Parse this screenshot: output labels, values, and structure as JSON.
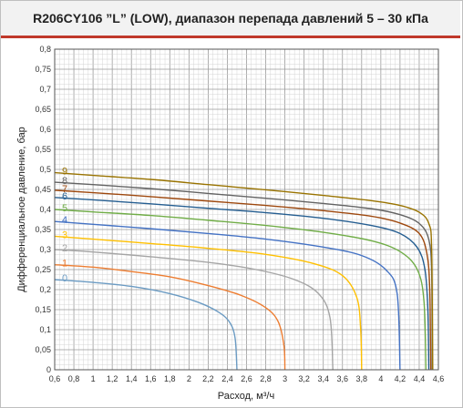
{
  "chart_data": {
    "type": "line",
    "title": "R206CY106 ”L” (LOW), диапазон перепада давлений 5 – 30 кПа",
    "xlabel": "Расход, м³/ч",
    "ylabel": "Дифференциальное давление, бар",
    "xlim": [
      0.6,
      4.6
    ],
    "ylim": [
      0,
      0.8
    ],
    "x_ticks": [
      "0,6",
      "0,8",
      "1",
      "1,2",
      "1,4",
      "1,6",
      "1,8",
      "2",
      "2,2",
      "2,4",
      "2,6",
      "2,8",
      "3",
      "3,2",
      "3,4",
      "3,6",
      "3,8",
      "4",
      "4,2",
      "4,4",
      "4,6"
    ],
    "y_ticks": [
      "0",
      "0,05",
      "0,1",
      "0,15",
      "0,2",
      "0,25",
      "0,3",
      "0,35",
      "0,4",
      "0,45",
      "0,5",
      "0,55",
      "0,6",
      "0,65",
      "0,7",
      "0,75",
      "0,8"
    ],
    "grid": true,
    "series": [
      {
        "name": "0",
        "color": "#6b9bc3",
        "points": [
          [
            0.6,
            0.225
          ],
          [
            1.0,
            0.218
          ],
          [
            1.4,
            0.208
          ],
          [
            1.8,
            0.19
          ],
          [
            2.1,
            0.168
          ],
          [
            2.3,
            0.145
          ],
          [
            2.42,
            0.12
          ],
          [
            2.48,
            0.08
          ],
          [
            2.5,
            0.0
          ]
        ]
      },
      {
        "name": "1",
        "color": "#ed7d31",
        "points": [
          [
            0.6,
            0.262
          ],
          [
            1.0,
            0.256
          ],
          [
            1.4,
            0.245
          ],
          [
            1.8,
            0.232
          ],
          [
            2.2,
            0.21
          ],
          [
            2.55,
            0.185
          ],
          [
            2.8,
            0.155
          ],
          [
            2.93,
            0.12
          ],
          [
            2.99,
            0.06
          ],
          [
            3.0,
            0.0
          ]
        ]
      },
      {
        "name": "2",
        "color": "#a5a5a5",
        "points": [
          [
            0.6,
            0.3
          ],
          [
            1.0,
            0.294
          ],
          [
            1.6,
            0.282
          ],
          [
            2.2,
            0.268
          ],
          [
            2.7,
            0.25
          ],
          [
            3.1,
            0.225
          ],
          [
            3.35,
            0.19
          ],
          [
            3.47,
            0.13
          ],
          [
            3.5,
            0.0
          ]
        ]
      },
      {
        "name": "3",
        "color": "#ffc000",
        "points": [
          [
            0.6,
            0.333
          ],
          [
            1.0,
            0.326
          ],
          [
            1.6,
            0.315
          ],
          [
            2.2,
            0.303
          ],
          [
            2.8,
            0.288
          ],
          [
            3.3,
            0.265
          ],
          [
            3.6,
            0.235
          ],
          [
            3.75,
            0.18
          ],
          [
            3.79,
            0.1
          ],
          [
            3.8,
            0.0
          ]
        ]
      },
      {
        "name": "4",
        "color": "#4472c4",
        "points": [
          [
            0.6,
            0.37
          ],
          [
            1.0,
            0.363
          ],
          [
            1.6,
            0.352
          ],
          [
            2.2,
            0.34
          ],
          [
            2.8,
            0.326
          ],
          [
            3.4,
            0.306
          ],
          [
            3.8,
            0.285
          ],
          [
            4.05,
            0.25
          ],
          [
            4.17,
            0.19
          ],
          [
            4.2,
            0.0
          ]
        ]
      },
      {
        "name": "5",
        "color": "#70ad47",
        "points": [
          [
            0.6,
            0.4
          ],
          [
            1.0,
            0.394
          ],
          [
            1.6,
            0.385
          ],
          [
            2.2,
            0.373
          ],
          [
            2.8,
            0.36
          ],
          [
            3.4,
            0.343
          ],
          [
            3.9,
            0.322
          ],
          [
            4.2,
            0.295
          ],
          [
            4.38,
            0.25
          ],
          [
            4.45,
            0.17
          ],
          [
            4.47,
            0.0
          ]
        ]
      },
      {
        "name": "6",
        "color": "#255e91",
        "points": [
          [
            0.6,
            0.43
          ],
          [
            1.0,
            0.424
          ],
          [
            1.6,
            0.414
          ],
          [
            2.2,
            0.403
          ],
          [
            2.8,
            0.392
          ],
          [
            3.4,
            0.378
          ],
          [
            3.9,
            0.36
          ],
          [
            4.2,
            0.34
          ],
          [
            4.38,
            0.305
          ],
          [
            4.46,
            0.25
          ],
          [
            4.49,
            0.15
          ],
          [
            4.5,
            0.0
          ]
        ]
      },
      {
        "name": "7",
        "color": "#9e480e",
        "points": [
          [
            0.6,
            0.448
          ],
          [
            1.0,
            0.442
          ],
          [
            1.6,
            0.432
          ],
          [
            2.2,
            0.421
          ],
          [
            2.8,
            0.41
          ],
          [
            3.4,
            0.397
          ],
          [
            3.9,
            0.383
          ],
          [
            4.2,
            0.366
          ],
          [
            4.4,
            0.34
          ],
          [
            4.48,
            0.29
          ],
          [
            4.51,
            0.2
          ],
          [
            4.52,
            0.0
          ]
        ]
      },
      {
        "name": "8",
        "color": "#636363",
        "points": [
          [
            0.6,
            0.468
          ],
          [
            1.0,
            0.462
          ],
          [
            1.6,
            0.452
          ],
          [
            2.2,
            0.44
          ],
          [
            2.8,
            0.428
          ],
          [
            3.4,
            0.415
          ],
          [
            3.9,
            0.402
          ],
          [
            4.2,
            0.387
          ],
          [
            4.4,
            0.365
          ],
          [
            4.5,
            0.325
          ],
          [
            4.53,
            0.24
          ],
          [
            4.535,
            0.0
          ]
        ]
      },
      {
        "name": "9",
        "color": "#997300",
        "points": [
          [
            0.6,
            0.492
          ],
          [
            1.0,
            0.485
          ],
          [
            1.6,
            0.475
          ],
          [
            2.2,
            0.462
          ],
          [
            2.8,
            0.449
          ],
          [
            3.4,
            0.435
          ],
          [
            3.9,
            0.422
          ],
          [
            4.2,
            0.41
          ],
          [
            4.4,
            0.393
          ],
          [
            4.5,
            0.365
          ],
          [
            4.53,
            0.3
          ],
          [
            4.54,
            0.0
          ]
        ]
      }
    ]
  }
}
